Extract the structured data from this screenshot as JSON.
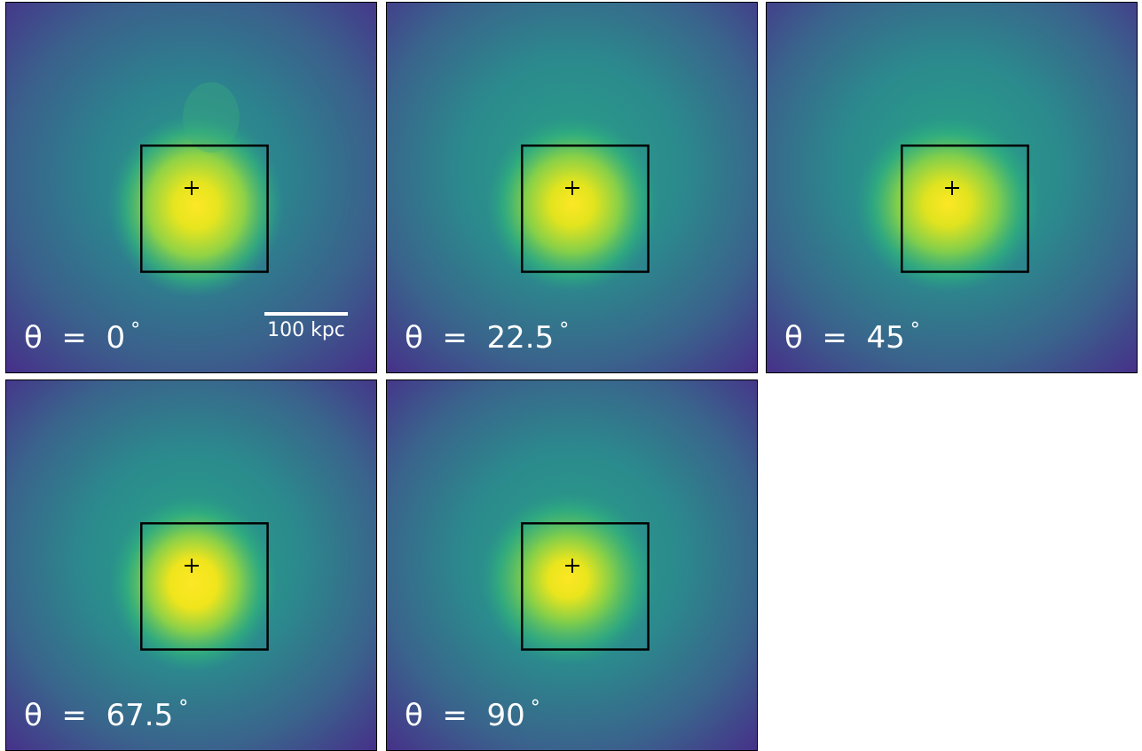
{
  "panels": [
    {
      "theta_prefix": "θ  =  ",
      "theta_value": "0",
      "degree": "°"
    },
    {
      "theta_prefix": "θ  =  ",
      "theta_value": "22.5",
      "degree": "°"
    },
    {
      "theta_prefix": "θ  =  ",
      "theta_value": "45",
      "degree": "°"
    },
    {
      "theta_prefix": "θ  =  ",
      "theta_value": "67.5",
      "degree": "°"
    },
    {
      "theta_prefix": "θ  =  ",
      "theta_value": "90",
      "degree": "°"
    }
  ],
  "scalebar": {
    "label": "100 kpc"
  },
  "colors": {
    "colormap": "viridis",
    "background": "#46338a",
    "mid": "#2f7f8e",
    "core": "#fde725",
    "frame": "#000000",
    "text": "#ffffff"
  }
}
